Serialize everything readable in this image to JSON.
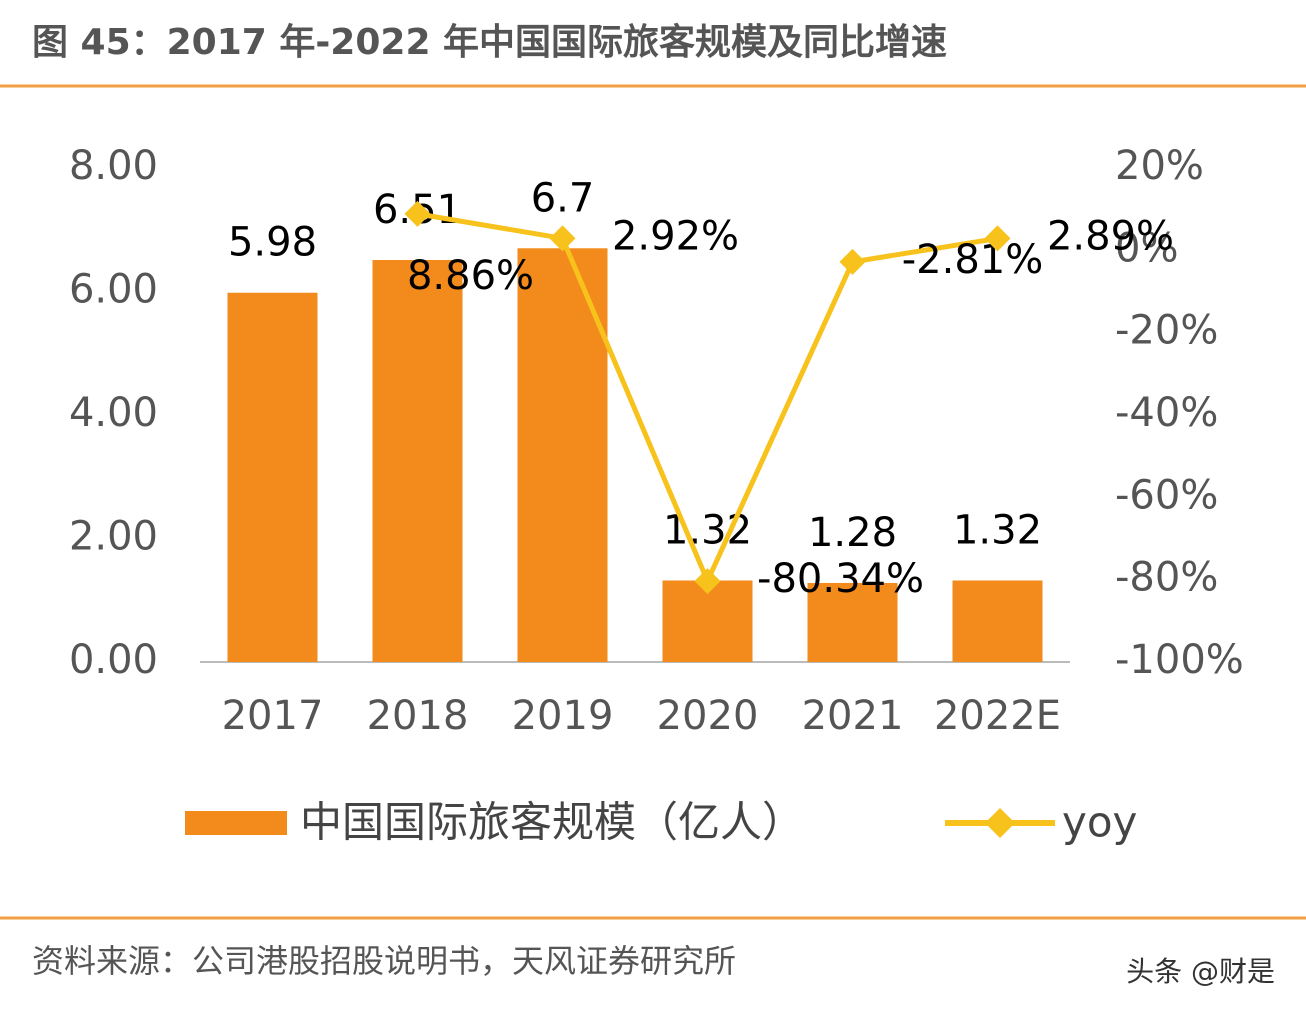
{
  "title": "图 45：2017 年-2022 年中国国际旅客规模及同比增速",
  "source": "资料来源：公司港股招股说明书，天风证券研究所",
  "watermark": "头条 @财是",
  "chart_data": {
    "type": "combo",
    "categories": [
      "2017",
      "2018",
      "2019",
      "2020",
      "2021",
      "2022E"
    ],
    "series": [
      {
        "name": "中国国际旅客规模（亿人）",
        "type": "bar",
        "color": "#f28a1c",
        "values": [
          5.98,
          6.51,
          6.7,
          1.32,
          1.28,
          1.32
        ]
      },
      {
        "name": "yoy",
        "type": "line",
        "axis": "y2",
        "color": "#f7c21b",
        "values": [
          null,
          8.86,
          2.92,
          -80.34,
          -2.81,
          2.89
        ],
        "value_labels": [
          null,
          "8.86%",
          "2.92%",
          "-80.34%",
          "-2.81%",
          "2.89%"
        ]
      }
    ],
    "ylim": [
      0,
      8
    ],
    "yticks": [
      {
        "value": 0,
        "label": "0.00"
      },
      {
        "value": 2,
        "label": "2.00"
      },
      {
        "value": 4,
        "label": "4.00"
      },
      {
        "value": 6,
        "label": "6.00"
      },
      {
        "value": 8,
        "label": "8.00"
      }
    ],
    "y2lim": [
      -100,
      20
    ],
    "y2ticks": [
      {
        "value": -100,
        "label": "-100%"
      },
      {
        "value": -80,
        "label": "-80%"
      },
      {
        "value": -60,
        "label": "-60%"
      },
      {
        "value": -40,
        "label": "-40%"
      },
      {
        "value": -20,
        "label": "-20%"
      },
      {
        "value": 0,
        "label": "0%"
      },
      {
        "value": 20,
        "label": "20%"
      }
    ],
    "grid": false
  }
}
